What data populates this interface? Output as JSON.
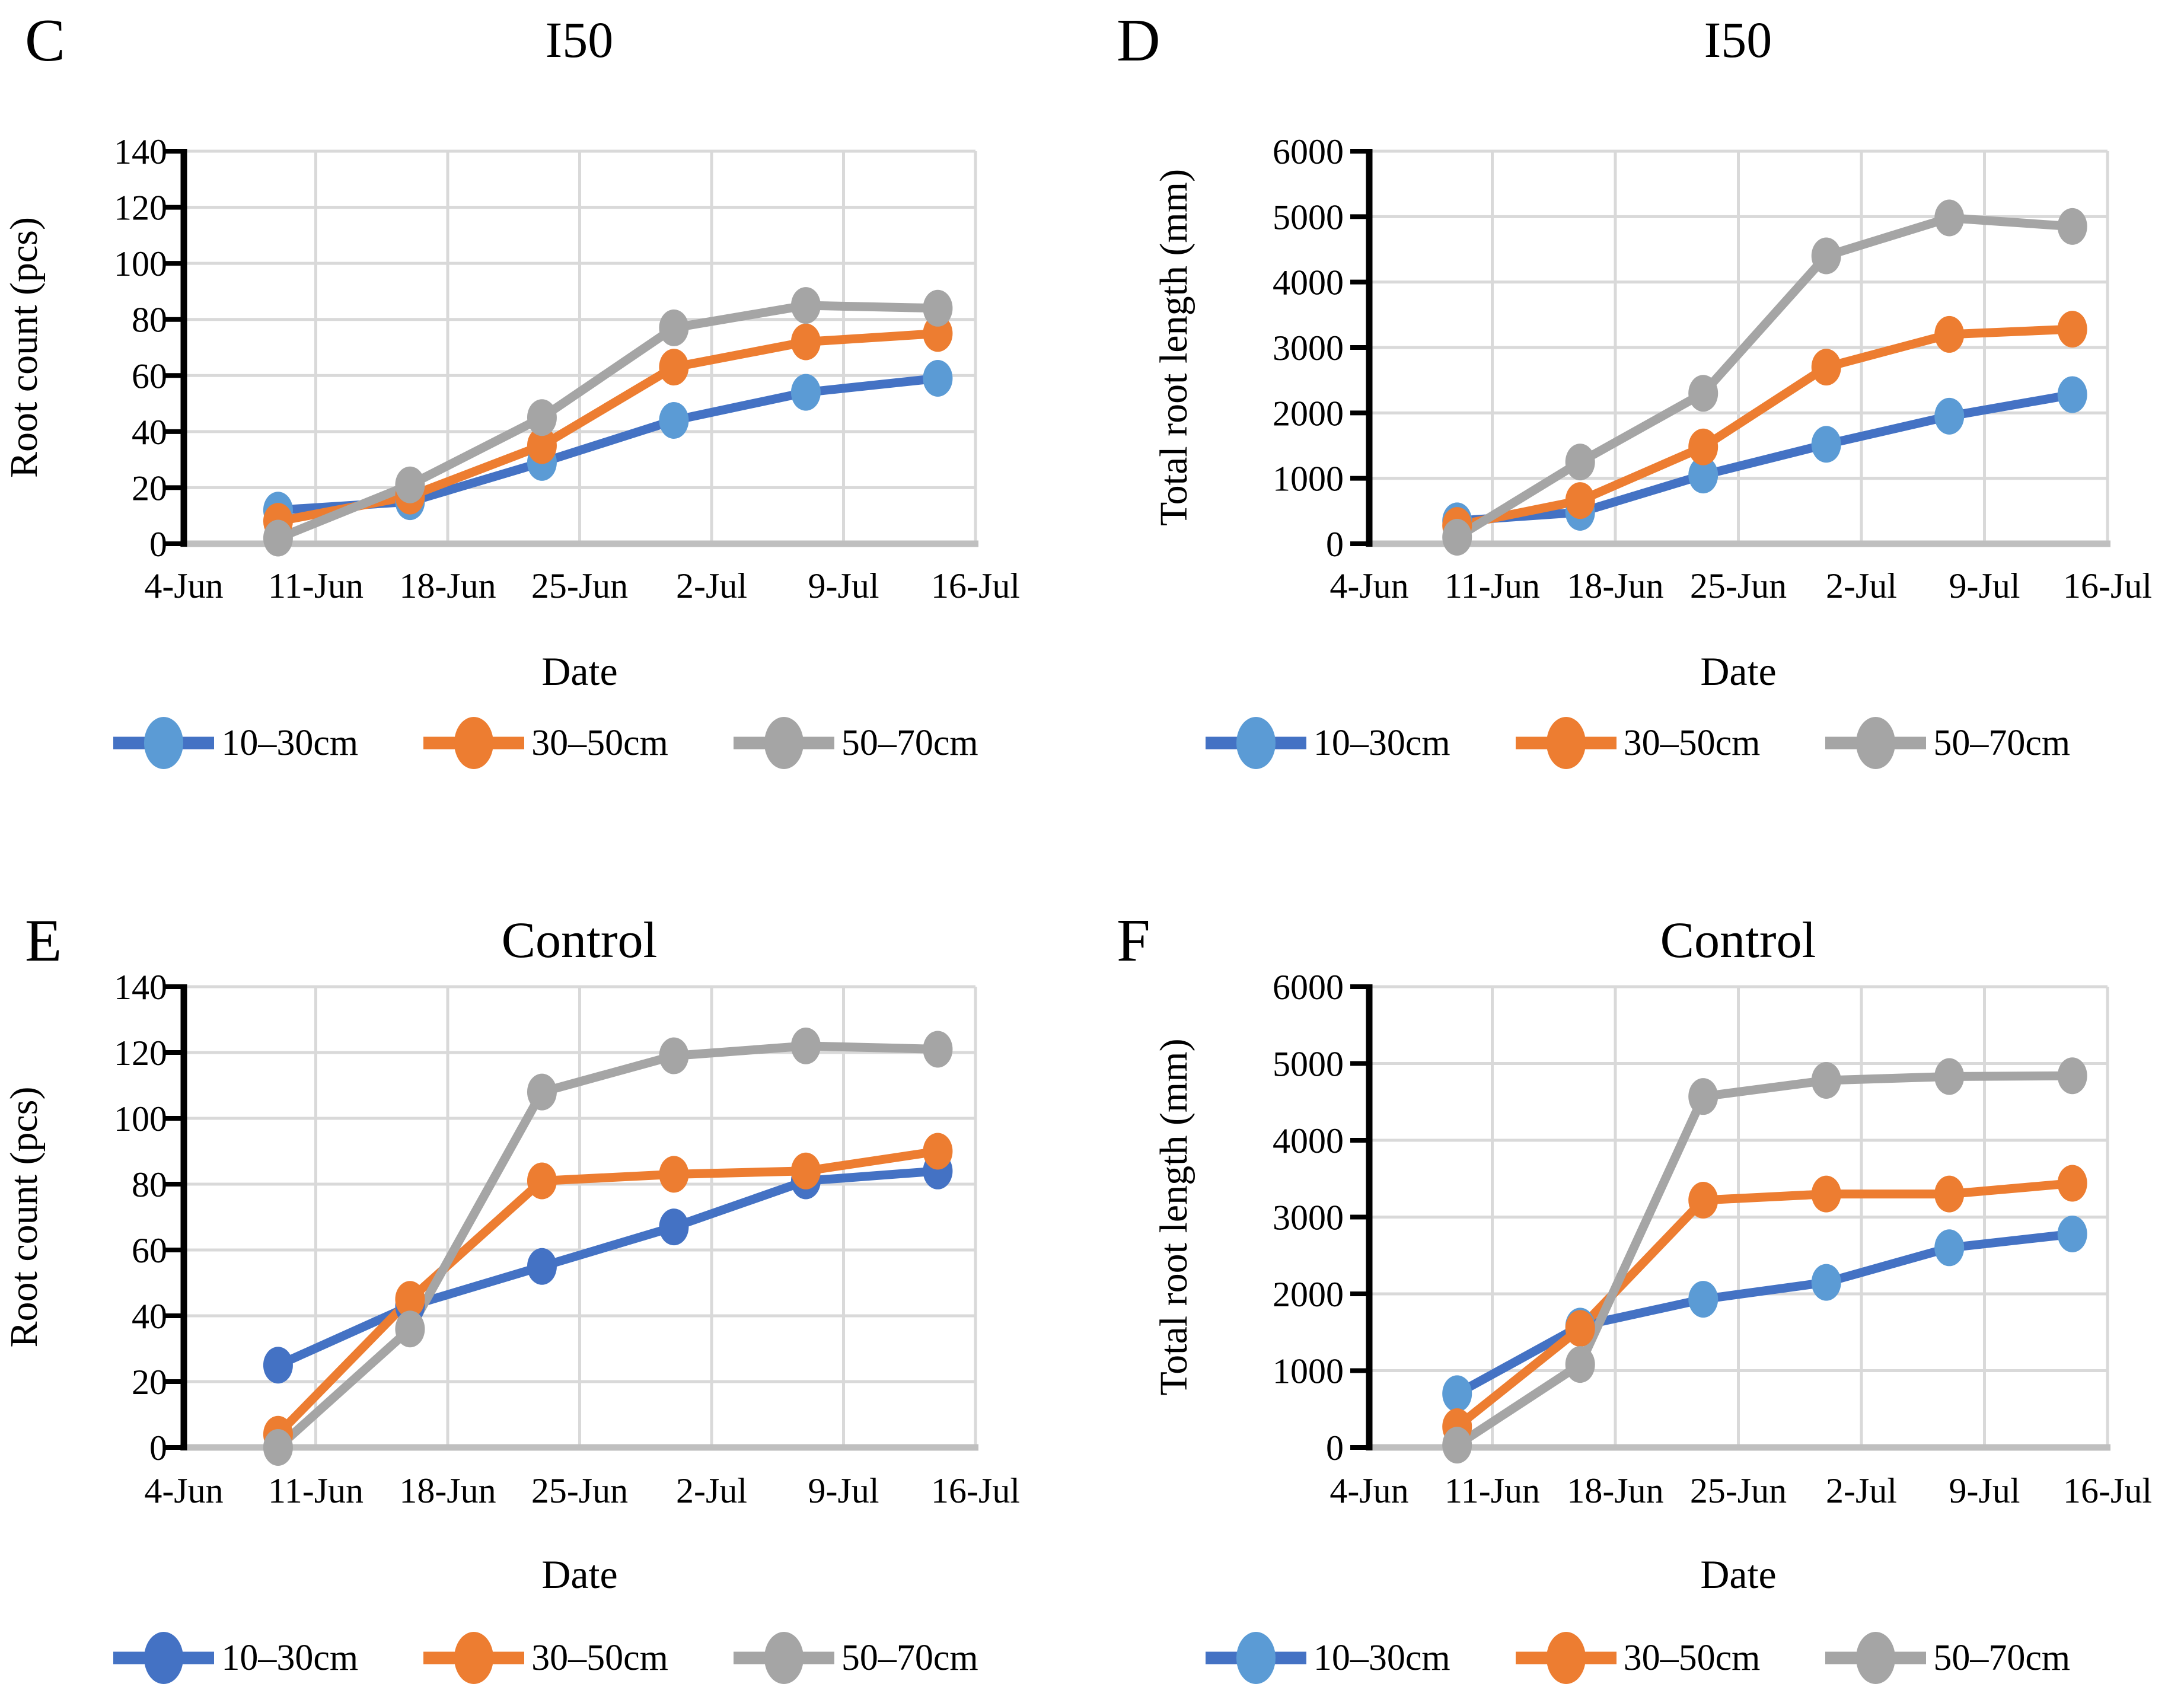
{
  "figure": {
    "background": "#ffffff",
    "text_color": "#000000",
    "gridline_color": "#d9d9d9",
    "x_axis_color": "#bfbfbf",
    "y_axis_color": "#000000"
  },
  "chart_data": [
    {
      "panel_letter": "C",
      "title": "I50",
      "type": "line",
      "xlabel": "Date",
      "ylabel": "Root count (pcs)",
      "ylim": [
        0,
        140
      ],
      "ystep": 20,
      "grid": true,
      "legend_position": "bottom",
      "y_tick_labels": [
        "0",
        "20",
        "40",
        "60",
        "80",
        "100",
        "120",
        "140"
      ],
      "x_tick_labels": [
        "4-Jun",
        "11-Jun",
        "18-Jun",
        "25-Jun",
        "2-Jul",
        "9-Jul",
        "16-Jul"
      ],
      "x_axis_span_days": 42,
      "x_days": [
        5,
        12,
        19,
        26,
        33,
        40
      ],
      "series": [
        {
          "name": "10–30cm",
          "line_color": "#4472C4",
          "marker_color": "#5B9BD5",
          "values": [
            12,
            15,
            29,
            44,
            54,
            59
          ]
        },
        {
          "name": "30–50cm",
          "line_color": "#ED7D31",
          "marker_color": "#ED7D31",
          "values": [
            8,
            17,
            35,
            63,
            72,
            75
          ]
        },
        {
          "name": "50–70cm",
          "line_color": "#A5A5A5",
          "marker_color": "#A5A5A5",
          "values": [
            2,
            21,
            45,
            77,
            85,
            84
          ]
        }
      ]
    },
    {
      "panel_letter": "D",
      "title": "I50",
      "type": "line",
      "xlabel": "Date",
      "ylabel": "Total root length (mm)",
      "ylim": [
        0,
        6000
      ],
      "ystep": 1000,
      "grid": true,
      "legend_position": "bottom",
      "y_tick_labels": [
        "0",
        "1000",
        "2000",
        "3000",
        "4000",
        "5000",
        "6000"
      ],
      "x_tick_labels": [
        "4-Jun",
        "11-Jun",
        "18-Jun",
        "25-Jun",
        "2-Jul",
        "9-Jul",
        "16-Jul"
      ],
      "x_axis_span_days": 42,
      "x_days": [
        5,
        12,
        19,
        26,
        33,
        40
      ],
      "series": [
        {
          "name": "10–30cm",
          "line_color": "#4472C4",
          "marker_color": "#5B9BD5",
          "values": [
            350,
            480,
            1050,
            1520,
            1950,
            2280
          ]
        },
        {
          "name": "30–50cm",
          "line_color": "#ED7D31",
          "marker_color": "#ED7D31",
          "values": [
            280,
            660,
            1480,
            2700,
            3200,
            3280
          ]
        },
        {
          "name": "50–70cm",
          "line_color": "#A5A5A5",
          "marker_color": "#A5A5A5",
          "values": [
            100,
            1250,
            2300,
            4400,
            4980,
            4850
          ]
        }
      ]
    },
    {
      "panel_letter": "E",
      "title": "Control",
      "type": "line",
      "xlabel": "Date",
      "ylabel": "Root count (pcs)",
      "ylim": [
        0,
        140
      ],
      "ystep": 20,
      "grid": true,
      "legend_position": "bottom",
      "y_tick_labels": [
        "0",
        "20",
        "40",
        "60",
        "80",
        "100",
        "120",
        "140"
      ],
      "x_tick_labels": [
        "4-Jun",
        "11-Jun",
        "18-Jun",
        "25-Jun",
        "2-Jul",
        "9-Jul",
        "16-Jul"
      ],
      "x_axis_span_days": 42,
      "x_days": [
        5,
        12,
        19,
        26,
        33,
        40
      ],
      "series": [
        {
          "name": "10–30cm",
          "line_color": "#4472C4",
          "marker_color": "#4472C4",
          "values": [
            25,
            43,
            55,
            67,
            81,
            84
          ]
        },
        {
          "name": "30–50cm",
          "line_color": "#ED7D31",
          "marker_color": "#ED7D31",
          "values": [
            4,
            45,
            81,
            83,
            84,
            90
          ]
        },
        {
          "name": "50–70cm",
          "line_color": "#A5A5A5",
          "marker_color": "#A5A5A5",
          "values": [
            0,
            36,
            108,
            119,
            122,
            121
          ]
        }
      ]
    },
    {
      "panel_letter": "F",
      "title": "Control",
      "type": "line",
      "xlabel": "Date",
      "ylabel": "Total root length (mm)",
      "ylim": [
        0,
        6000
      ],
      "ystep": 1000,
      "grid": true,
      "legend_position": "bottom",
      "y_tick_labels": [
        "0",
        "1000",
        "2000",
        "3000",
        "4000",
        "5000",
        "6000"
      ],
      "x_tick_labels": [
        "4-Jun",
        "11-Jun",
        "18-Jun",
        "25-Jun",
        "2-Jul",
        "9-Jul",
        "16-Jul"
      ],
      "x_axis_span_days": 42,
      "x_days": [
        5,
        12,
        19,
        26,
        33,
        40
      ],
      "series": [
        {
          "name": "10–30cm",
          "line_color": "#4472C4",
          "marker_color": "#5B9BD5",
          "values": [
            700,
            1580,
            1930,
            2150,
            2600,
            2780
          ]
        },
        {
          "name": "30–50cm",
          "line_color": "#ED7D31",
          "marker_color": "#ED7D31",
          "values": [
            270,
            1550,
            3220,
            3300,
            3300,
            3440
          ]
        },
        {
          "name": "50–70cm",
          "line_color": "#A5A5A5",
          "marker_color": "#A5A5A5",
          "values": [
            30,
            1080,
            4570,
            4780,
            4830,
            4840
          ]
        }
      ]
    }
  ]
}
